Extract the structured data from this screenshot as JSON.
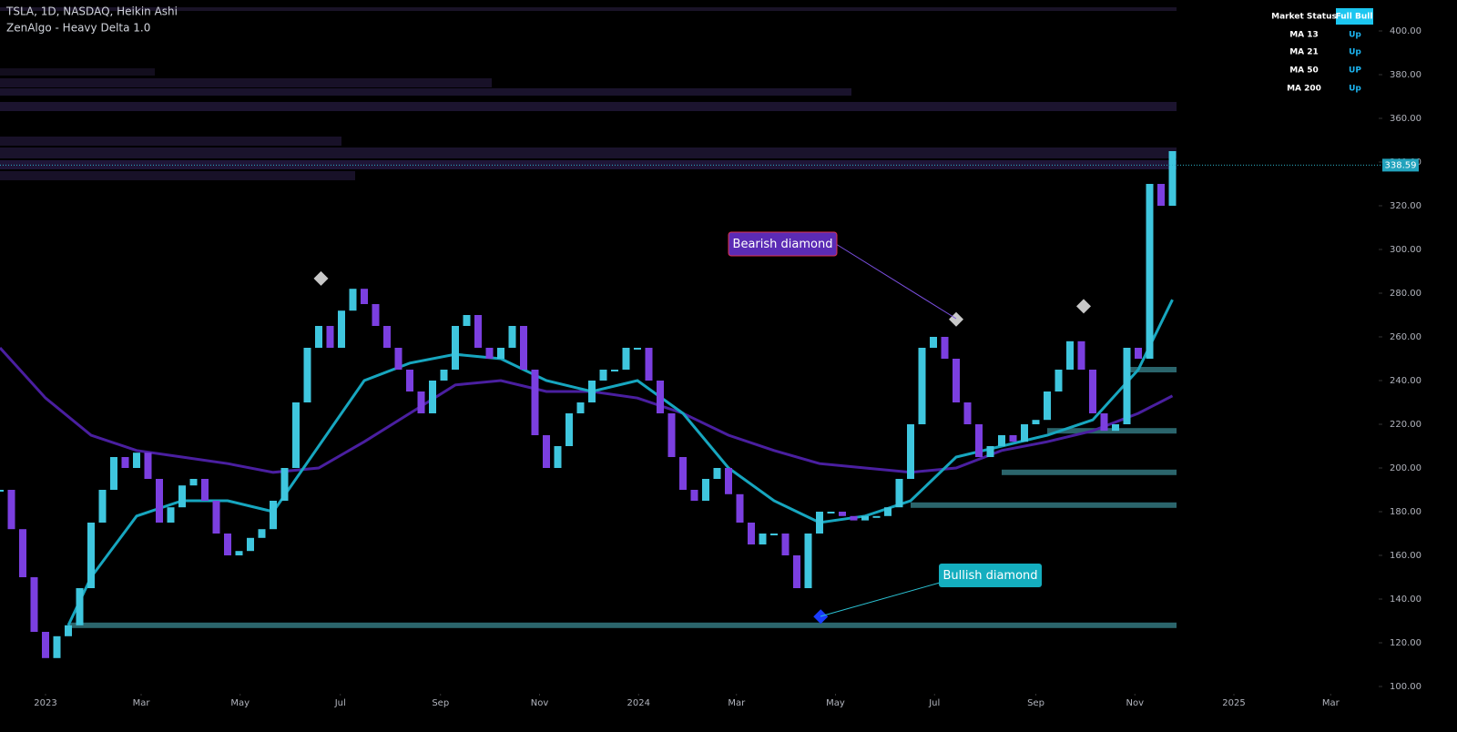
{
  "chart_data": {
    "type": "candlestick",
    "title": "TSLA, 1D, NASDAQ, Heikin Ashi",
    "subtitle": "ZenAlgo - Heavy Delta 1.0",
    "x": [
      -4,
      -3,
      -2,
      -1,
      0,
      1,
      2,
      3,
      4,
      5,
      6,
      7,
      8,
      9,
      10,
      11,
      12,
      13,
      14,
      15,
      16,
      17,
      18,
      19,
      20,
      21,
      22,
      23,
      24,
      25,
      26,
      27,
      28,
      29,
      30,
      31,
      32,
      33,
      34,
      35,
      36,
      37,
      38,
      39,
      40,
      41,
      42,
      43,
      44,
      45,
      46,
      47,
      48,
      49,
      50,
      51,
      52,
      53,
      54,
      55,
      56,
      57,
      58,
      59,
      60,
      61,
      62,
      63,
      64,
      65,
      66,
      67,
      68,
      69,
      70,
      71,
      72,
      73,
      74,
      75,
      76,
      77,
      78,
      79,
      80,
      81,
      82,
      83,
      84,
      85,
      86,
      87,
      88,
      89,
      90,
      91,
      92,
      93,
      94,
      95,
      96,
      97,
      98,
      99
    ],
    "values": [
      190,
      172,
      150,
      125,
      113,
      123,
      128,
      145,
      175,
      190,
      205,
      200,
      207,
      195,
      175,
      182,
      192,
      195,
      185,
      170,
      160,
      162,
      168,
      172,
      185,
      200,
      230,
      255,
      265,
      255,
      272,
      282,
      275,
      265,
      255,
      245,
      235,
      225,
      240,
      245,
      265,
      270,
      255,
      250,
      255,
      265,
      245,
      215,
      200,
      210,
      225,
      230,
      240,
      245,
      245,
      255,
      255,
      240,
      225,
      205,
      190,
      185,
      195,
      200,
      188,
      175,
      165,
      170,
      170,
      160,
      145,
      170,
      180,
      180,
      178,
      176,
      178,
      178,
      182,
      195,
      220,
      255,
      260,
      250,
      230,
      220,
      205,
      210,
      215,
      212,
      220,
      222,
      235,
      245,
      258,
      245,
      225,
      217,
      220,
      255,
      250,
      330,
      320,
      345
    ],
    "up_color": "#3fc6de",
    "down_color": "#7b3fe0",
    "xlim": [
      -4,
      117
    ],
    "xticks": [
      {
        "value": 0,
        "label": "2023"
      },
      {
        "value": 8.4,
        "label": "Mar"
      },
      {
        "value": 17.1,
        "label": "May"
      },
      {
        "value": 25.9,
        "label": "Jul"
      },
      {
        "value": 34.7,
        "label": "Sep"
      },
      {
        "value": 43.4,
        "label": "Nov"
      },
      {
        "value": 52.1,
        "label": "2024"
      },
      {
        "value": 60.7,
        "label": "Mar"
      },
      {
        "value": 69.4,
        "label": "May"
      },
      {
        "value": 78.1,
        "label": "Jul"
      },
      {
        "value": 87,
        "label": "Sep"
      },
      {
        "value": 95.7,
        "label": "Nov"
      },
      {
        "value": 104.4,
        "label": "2025"
      },
      {
        "value": 112.9,
        "label": "Mar"
      }
    ],
    "ylim": [
      100,
      400
    ],
    "yticks": [
      {
        "value": 100,
        "label": "100.00"
      },
      {
        "value": 120,
        "label": "120.00"
      },
      {
        "value": 140,
        "label": "140.00"
      },
      {
        "value": 160,
        "label": "160.00"
      },
      {
        "value": 180,
        "label": "180.00"
      },
      {
        "value": 200,
        "label": "200.00"
      },
      {
        "value": 220,
        "label": "220.00"
      },
      {
        "value": 240,
        "label": "240.00"
      },
      {
        "value": 260,
        "label": "260.00"
      },
      {
        "value": 280,
        "label": "280.00"
      },
      {
        "value": 300,
        "label": "300.00"
      },
      {
        "value": 320,
        "label": "320.00"
      },
      {
        "value": 340,
        "label": "340.00"
      },
      {
        "value": 360,
        "label": "360.00"
      },
      {
        "value": 380,
        "label": "380.00"
      },
      {
        "value": 400,
        "label": "400.00"
      }
    ],
    "last_price": 338.59,
    "moving_averages": [
      {
        "color": "#4a1fa0",
        "x": [
          -4,
          0,
          4,
          8,
          12,
          16,
          20,
          24,
          28,
          32,
          36,
          40,
          44,
          48,
          52,
          56,
          60,
          64,
          68,
          72,
          76,
          80,
          84,
          88,
          92,
          96,
          99
        ],
        "values": [
          255,
          232,
          215,
          208,
          205,
          202,
          198,
          200,
          212,
          225,
          238,
          240,
          235,
          235,
          232,
          225,
          215,
          208,
          202,
          200,
          198,
          200,
          208,
          212,
          217,
          225,
          233
        ]
      },
      {
        "color": "#17a6bf",
        "x": [
          2,
          4,
          8,
          12,
          16,
          20,
          24,
          28,
          32,
          36,
          40,
          44,
          48,
          52,
          56,
          60,
          64,
          68,
          72,
          76,
          80,
          84,
          88,
          92,
          96,
          99
        ],
        "values": [
          128,
          150,
          178,
          185,
          185,
          180,
          210,
          240,
          248,
          252,
          250,
          240,
          235,
          240,
          225,
          200,
          185,
          175,
          178,
          185,
          205,
          210,
          215,
          222,
          245,
          277
        ]
      }
    ],
    "levels": [
      {
        "value": 128,
        "from": 2
      },
      {
        "value": 183,
        "from": 76
      },
      {
        "value": 198,
        "from": 84
      },
      {
        "value": 217,
        "from": 88
      },
      {
        "value": 245,
        "from": 95
      }
    ],
    "level_color": "#4fb8c4",
    "markers": [
      {
        "x": 24.2,
        "y": 286.7,
        "color": "#c8c8c8"
      },
      {
        "x": 80,
        "y": 268,
        "color": "#c8c8c8"
      },
      {
        "x": 91.2,
        "y": 274,
        "color": "#c8c8c8"
      },
      {
        "x": 68.1,
        "y": 132,
        "color": "#1a3cff"
      }
    ],
    "annotations": [
      "Bearish diamond",
      "Bullish diamond"
    ],
    "status_table": {
      "header": [
        "Market Status",
        "Full Bull"
      ],
      "rows": [
        [
          "MA 13",
          "Up"
        ],
        [
          "MA 21",
          "Up"
        ],
        [
          "MA 50",
          "UP"
        ],
        [
          "MA 200",
          "Up"
        ]
      ]
    }
  }
}
